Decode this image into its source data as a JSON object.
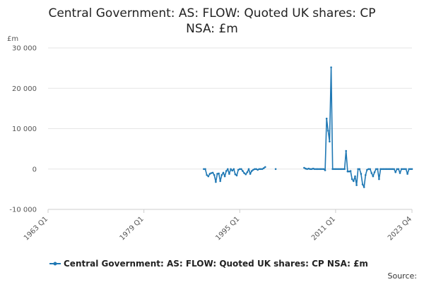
{
  "chart_data": {
    "type": "line",
    "title_line1": "Central Government: AS: FLOW: Quoted UK shares: CP",
    "title_line2": "NSA: £m",
    "unit_label": "£m",
    "ylim": [
      -10000,
      30000
    ],
    "y_ticks": [
      -10000,
      0,
      10000,
      20000,
      30000
    ],
    "y_tick_labels": [
      "-10 000",
      "0",
      "10 000",
      "20 000",
      "30 000"
    ],
    "x_ticks": [
      "1963 Q1",
      "1979 Q1",
      "1995 Q1",
      "2011 Q1",
      "2023 Q4"
    ],
    "xlim": [
      "1963 Q1",
      "2023 Q4"
    ],
    "legend_label": "Central Government: AS: FLOW: Quoted UK shares: CP NSA: £m",
    "source_label": "Source:",
    "grid": true,
    "legend_position": "bottom",
    "line_color": "#1f78b4",
    "series": [
      {
        "points": [
          [
            "1989 Q1",
            0
          ],
          [
            "1989 Q2",
            0
          ],
          [
            "1989 Q3",
            -1500
          ],
          [
            "1989 Q4",
            -1800
          ],
          [
            "1990 Q1",
            -1200
          ],
          [
            "1990 Q2",
            -1000
          ],
          [
            "1990 Q3",
            -900
          ],
          [
            "1990 Q4",
            -1500
          ],
          [
            "1991 Q1",
            -3200
          ],
          [
            "1991 Q2",
            -1200
          ],
          [
            "1991 Q3",
            -1100
          ],
          [
            "1991 Q4",
            -3000
          ],
          [
            "1992 Q1",
            -1500
          ],
          [
            "1992 Q2",
            -900
          ],
          [
            "1992 Q3",
            -1800
          ],
          [
            "1992 Q4",
            -500
          ],
          [
            "1993 Q1",
            0
          ],
          [
            "1993 Q2",
            -1200
          ],
          [
            "1993 Q3",
            0
          ],
          [
            "1993 Q4",
            -400
          ],
          [
            "1994 Q1",
            0
          ],
          [
            "1994 Q2",
            -1300
          ],
          [
            "1994 Q3",
            -1600
          ],
          [
            "1994 Q4",
            -200
          ],
          [
            "1995 Q1",
            0
          ],
          [
            "1995 Q2",
            0
          ],
          [
            "1995 Q3",
            -500
          ],
          [
            "1995 Q4",
            -1000
          ],
          [
            "1996 Q1",
            -1300
          ],
          [
            "1996 Q2",
            -800
          ],
          [
            "1996 Q3",
            0
          ],
          [
            "1996 Q4",
            -1200
          ],
          [
            "1997 Q1",
            -500
          ],
          [
            "1997 Q2",
            -200
          ],
          [
            "1997 Q3",
            0
          ],
          [
            "1997 Q4",
            0
          ],
          [
            "1998 Q1",
            -200
          ],
          [
            "1998 Q2",
            0
          ],
          [
            "1998 Q3",
            0
          ],
          [
            "1998 Q4",
            0
          ],
          [
            "1999 Q1",
            200
          ],
          [
            "1999 Q2",
            500
          ]
        ]
      },
      {
        "points": [
          [
            "2001 Q1",
            0
          ]
        ]
      },
      {
        "points": [
          [
            "2005 Q4",
            300
          ],
          [
            "2006 Q1",
            100
          ],
          [
            "2006 Q2",
            0
          ],
          [
            "2006 Q3",
            100
          ],
          [
            "2006 Q4",
            0
          ],
          [
            "2007 Q1",
            0
          ],
          [
            "2007 Q2",
            100
          ],
          [
            "2007 Q3",
            0
          ],
          [
            "2007 Q4",
            0
          ],
          [
            "2008 Q1",
            0
          ],
          [
            "2008 Q2",
            0
          ],
          [
            "2008 Q3",
            0
          ],
          [
            "2008 Q4",
            0
          ],
          [
            "2009 Q1",
            0
          ],
          [
            "2009 Q2",
            -300
          ],
          [
            "2009 Q3",
            12500
          ],
          [
            "2009 Q4",
            9500
          ],
          [
            "2010 Q1",
            6800
          ],
          [
            "2010 Q2",
            25200
          ],
          [
            "2010 Q3",
            0
          ],
          [
            "2010 Q4",
            0
          ],
          [
            "2011 Q1",
            0
          ],
          [
            "2011 Q2",
            0
          ],
          [
            "2011 Q3",
            0
          ],
          [
            "2011 Q4",
            0
          ],
          [
            "2012 Q1",
            0
          ],
          [
            "2012 Q2",
            0
          ],
          [
            "2012 Q3",
            0
          ],
          [
            "2012 Q4",
            4500
          ],
          [
            "2013 Q1",
            -600
          ],
          [
            "2013 Q2",
            -600
          ],
          [
            "2013 Q3",
            -500
          ],
          [
            "2013 Q4",
            -2500
          ],
          [
            "2014 Q1",
            -3000
          ],
          [
            "2014 Q2",
            -1800
          ],
          [
            "2014 Q3",
            -4000
          ],
          [
            "2014 Q4",
            0
          ],
          [
            "2015 Q1",
            0
          ],
          [
            "2015 Q2",
            -1200
          ],
          [
            "2015 Q3",
            -3800
          ],
          [
            "2015 Q4",
            -4500
          ],
          [
            "2016 Q1",
            -1500
          ],
          [
            "2016 Q2",
            -200
          ],
          [
            "2016 Q3",
            0
          ],
          [
            "2016 Q4",
            0
          ],
          [
            "2017 Q1",
            -1000
          ],
          [
            "2017 Q2",
            -1800
          ],
          [
            "2017 Q3",
            -800
          ],
          [
            "2017 Q4",
            0
          ],
          [
            "2018 Q1",
            0
          ],
          [
            "2018 Q2",
            -2500
          ],
          [
            "2018 Q3",
            0
          ],
          [
            "2018 Q4",
            0
          ],
          [
            "2019 Q1",
            0
          ],
          [
            "2019 Q2",
            0
          ],
          [
            "2019 Q3",
            0
          ],
          [
            "2019 Q4",
            0
          ],
          [
            "2020 Q1",
            0
          ],
          [
            "2020 Q2",
            0
          ],
          [
            "2020 Q3",
            0
          ],
          [
            "2020 Q4",
            0
          ],
          [
            "2021 Q1",
            -800
          ],
          [
            "2021 Q2",
            0
          ],
          [
            "2021 Q3",
            0
          ],
          [
            "2021 Q4",
            -1000
          ],
          [
            "2022 Q1",
            0
          ],
          [
            "2022 Q2",
            0
          ],
          [
            "2022 Q3",
            0
          ],
          [
            "2022 Q4",
            0
          ],
          [
            "2023 Q1",
            -1200
          ],
          [
            "2023 Q2",
            0
          ],
          [
            "2023 Q3",
            0
          ],
          [
            "2023 Q4",
            0
          ]
        ]
      }
    ]
  }
}
